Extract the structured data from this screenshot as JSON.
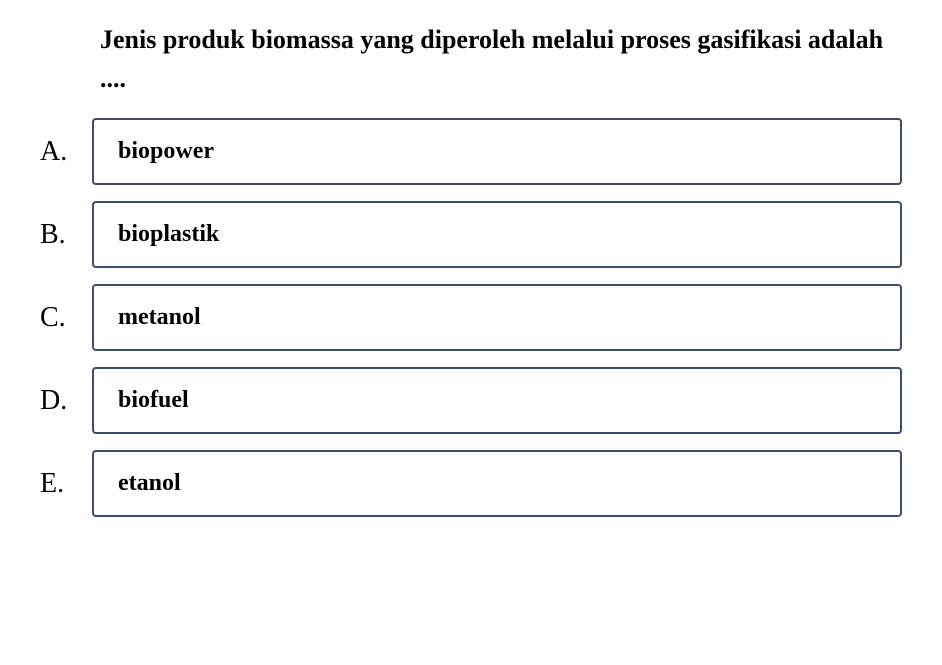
{
  "question": {
    "text": "Jenis produk biomassa yang diperoleh melalui proses gasifikasi adalah ...."
  },
  "options": [
    {
      "letter": "A.",
      "text": "biopower"
    },
    {
      "letter": "B.",
      "text": "bioplastik"
    },
    {
      "letter": "C.",
      "text": "metanol"
    },
    {
      "letter": "D.",
      "text": "biofuel"
    },
    {
      "letter": "E.",
      "text": "etanol"
    }
  ],
  "styling": {
    "border_color": "#3a4d6b",
    "background_color": "#ffffff",
    "text_color": "#000000",
    "question_fontsize": 26,
    "option_letter_fontsize": 28,
    "option_text_fontsize": 24,
    "border_width": 2,
    "border_radius": 4
  }
}
